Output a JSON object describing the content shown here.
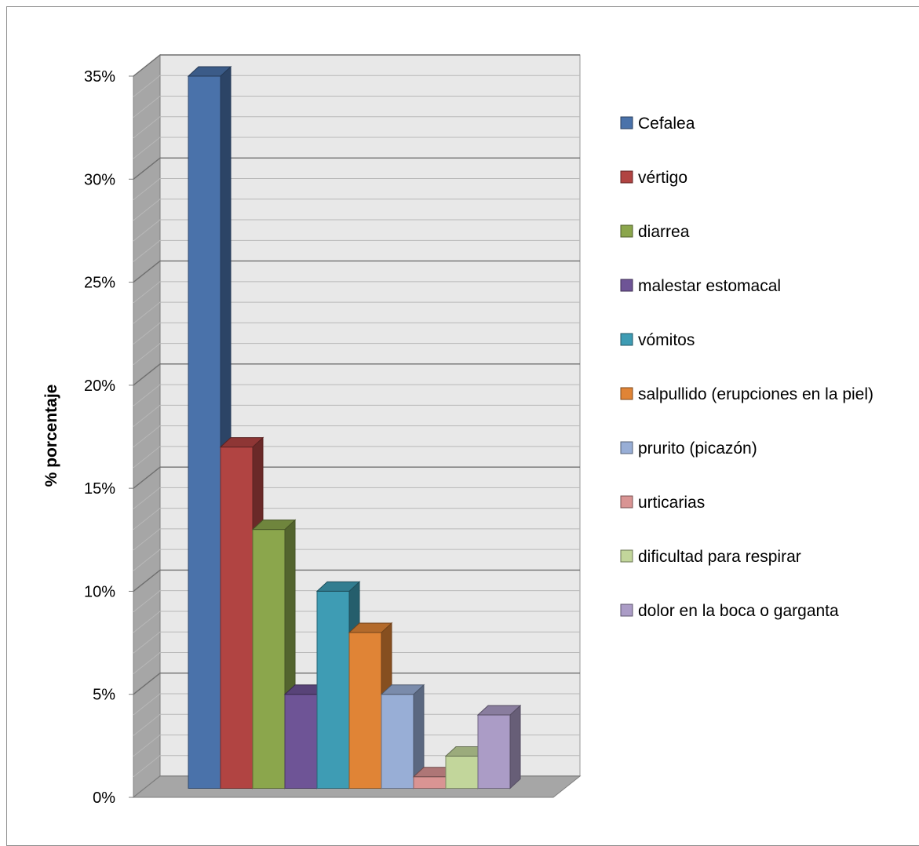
{
  "chart_data": {
    "type": "bar",
    "title": "",
    "xlabel": "",
    "ylabel": "% porcentaje",
    "ylim": [
      0,
      35
    ],
    "ytick_labels": [
      "0%",
      "5%",
      "10%",
      "15%",
      "20%",
      "25%",
      "30%",
      "35%"
    ],
    "grid": true,
    "legend_position": "right",
    "series": [
      {
        "name": "Cefalea",
        "value": 35,
        "color": "#4a72aa"
      },
      {
        "name": "vértigo",
        "value": 17,
        "color": "#b14442"
      },
      {
        "name": "diarrea",
        "value": 13,
        "color": "#8ba64c"
      },
      {
        "name": "malestar estomacal",
        "value": 5,
        "color": "#6e5496"
      },
      {
        "name": "vómitos",
        "value": 10,
        "color": "#3e9cb4"
      },
      {
        "name": "salpullido (erupciones en la piel)",
        "value": 8,
        "color": "#e08436"
      },
      {
        "name": "prurito (picazón)",
        "value": 5,
        "color": "#98aed6"
      },
      {
        "name": "urticarias",
        "value": 1,
        "color": "#d99493"
      },
      {
        "name": "dificultad para respirar",
        "value": 2,
        "color": "#c2d69b"
      },
      {
        "name": "dolor en la boca o garganta",
        "value": 4,
        "color": "#ab9cc6"
      }
    ]
  }
}
